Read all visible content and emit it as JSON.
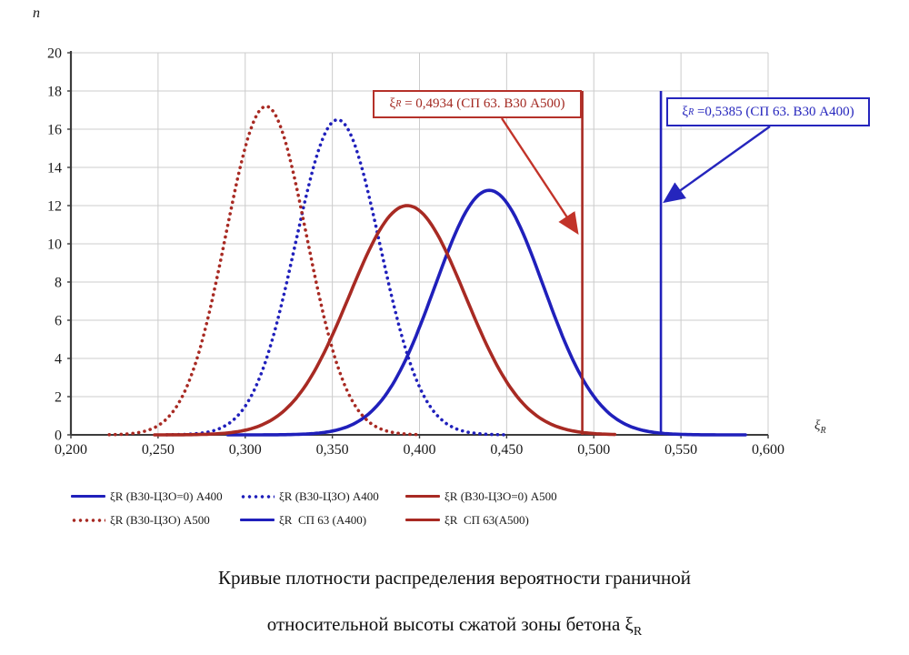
{
  "figure": {
    "axis_label_y": "n",
    "axis_label_x_symbol": "ξ",
    "axis_label_x_sub": "R"
  },
  "annotations": {
    "red": {
      "symbol": "ξ",
      "sub": "R",
      "text": " = 0,4934 (СП 63. В30 А500)"
    },
    "blue": {
      "symbol": "ξ",
      "sub": "R",
      "text": " =0,5385 (СП 63. В30 А400)"
    }
  },
  "legend": {
    "items": [
      {
        "label": "ξR (В30-ЦЗО=0) А400",
        "color_key": "blue",
        "style": "solid"
      },
      {
        "label": "ξR (В30-ЦЗО) А400",
        "color_key": "blue",
        "style": "dotted"
      },
      {
        "label": "ξR (В30-ЦЗО=0) А500",
        "color_key": "red",
        "style": "solid"
      },
      {
        "label": "ξR (В30-ЦЗО) А500",
        "color_key": "red",
        "style": "dotted"
      },
      {
        "label": "ξR  СП 63 (А400)",
        "color_key": "blue",
        "style": "solid"
      },
      {
        "label": "ξR  СП 63(А500)",
        "color_key": "red",
        "style": "solid"
      }
    ]
  },
  "caption": {
    "line1": "Кривые плотности распределения вероятности граничной",
    "line2": "относительной высоты сжатой зоны бетона ",
    "symbol": "ξ",
    "symbol_sub": "R"
  },
  "colors": {
    "blue": "#2020bb",
    "red": "#a82a23",
    "arrow_red": "#c23329",
    "arrow_blue": "#2525bd",
    "grid": "#cccccc",
    "axis": "#3c3c3c",
    "tick_text": "#1a1a1a"
  },
  "chart_data": {
    "type": "line",
    "title": "",
    "xlabel": "ξR",
    "ylabel": "n",
    "xlim": [
      0.2,
      0.6
    ],
    "ylim": [
      0,
      20
    ],
    "x_ticks": [
      0.2,
      0.25,
      0.3,
      0.35,
      0.4,
      0.45,
      0.5,
      0.55,
      0.6
    ],
    "y_ticks": [
      0,
      2,
      4,
      6,
      8,
      10,
      12,
      14,
      16,
      18,
      20
    ],
    "grid": true,
    "legend_position": "bottom",
    "series": [
      {
        "name": "ξR (В30-ЦЗО=0) А400",
        "color_key": "blue",
        "style": "solid",
        "distribution": "normal",
        "mean": 0.44,
        "sigma": 0.0312,
        "peak": 12.8,
        "x_draw_range": [
          0.29,
          0.587
        ]
      },
      {
        "name": "ξR (В30-ЦЗО) А400",
        "color_key": "blue",
        "style": "dotted",
        "distribution": "normal",
        "mean": 0.353,
        "sigma": 0.0242,
        "peak": 16.5,
        "x_draw_range": [
          0.255,
          0.452
        ]
      },
      {
        "name": "ξR (В30-ЦЗО=0) А500",
        "color_key": "red",
        "style": "solid",
        "distribution": "normal",
        "mean": 0.393,
        "sigma": 0.0333,
        "peak": 12.0,
        "x_draw_range": [
          0.248,
          0.513
        ]
      },
      {
        "name": "ξR (В30-ЦЗО) А500",
        "color_key": "red",
        "style": "dotted",
        "distribution": "normal",
        "mean": 0.312,
        "sigma": 0.0232,
        "peak": 17.2,
        "x_draw_range": [
          0.222,
          0.4
        ]
      }
    ],
    "vlines": [
      {
        "name": "ξR СП 63 (А400)",
        "x": 0.5385,
        "y_top": 18,
        "color_key": "blue"
      },
      {
        "name": "ξR СП 63(А500)",
        "x": 0.4934,
        "y_top": 18,
        "color_key": "red"
      }
    ]
  }
}
